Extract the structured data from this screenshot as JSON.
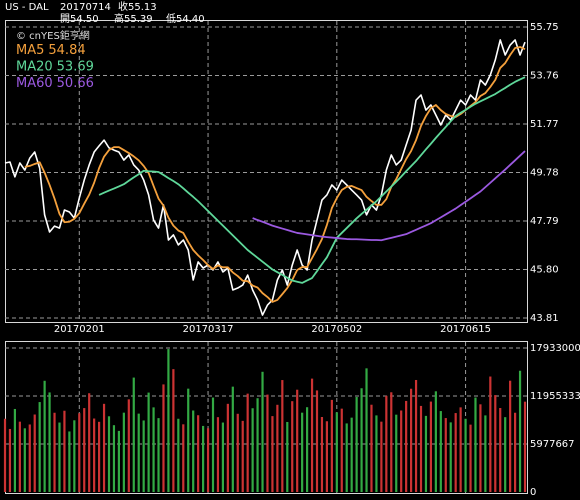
{
  "header": {
    "symbol": "US - DAL",
    "date": "20170714",
    "close": "收55.13",
    "open": "開54.50",
    "high": "高55.39",
    "low": "低54.40"
  },
  "chart_data": [
    {
      "type": "line",
      "watermark": "© cnYES鉅亨網",
      "categories": [
        null,
        null,
        null,
        null,
        null,
        null,
        null,
        null,
        null,
        null,
        null,
        null,
        null,
        null,
        null,
        "20170201",
        null,
        null,
        null,
        null,
        null,
        null,
        null,
        null,
        null,
        null,
        null,
        null,
        null,
        null,
        null,
        null,
        null,
        null,
        null,
        null,
        null,
        null,
        null,
        null,
        null,
        "20170317",
        null,
        null,
        null,
        null,
        null,
        null,
        null,
        null,
        null,
        null,
        null,
        null,
        null,
        null,
        null,
        null,
        null,
        null,
        null,
        null,
        null,
        null,
        null,
        null,
        null,
        "20170502",
        null,
        null,
        null,
        null,
        null,
        null,
        null,
        null,
        null,
        null,
        null,
        null,
        null,
        null,
        null,
        null,
        null,
        null,
        null,
        null,
        null,
        null,
        null,
        null,
        null,
        "20170615",
        null,
        null,
        null,
        null,
        null,
        null,
        null,
        null,
        null,
        null,
        null,
        null
      ],
      "series": [
        {
          "color": "#ffffff",
          "values": [
            50.17,
            50.21,
            49.6,
            50.17,
            49.88,
            50.37,
            50.62,
            49.96,
            48.04,
            47.34,
            47.58,
            47.5,
            48.24,
            48.16,
            47.91,
            48.73,
            49.47,
            50.09,
            50.62,
            50.87,
            51.11,
            50.79,
            50.7,
            50.62,
            50.29,
            50.5,
            50.09,
            49.88,
            49.47,
            48.86,
            47.83,
            47.5,
            48.45,
            47.01,
            47.22,
            46.81,
            47.01,
            46.6,
            45.37,
            46.11,
            45.86,
            45.98,
            45.78,
            46.11,
            45.7,
            45.86,
            44.96,
            45.04,
            45.16,
            45.57,
            44.96,
            44.55,
            43.93,
            44.34,
            44.55,
            45.37,
            45.78,
            45.16,
            45.98,
            46.6,
            45.98,
            45.78,
            47.01,
            47.83,
            48.65,
            48.86,
            49.27,
            49.06,
            49.47,
            49.27,
            49.06,
            48.86,
            48.65,
            48.04,
            48.45,
            48.24,
            48.86,
            49.88,
            50.5,
            50.09,
            50.29,
            50.91,
            51.52,
            52.75,
            52.96,
            52.34,
            52.55,
            52.14,
            51.73,
            52.14,
            51.93,
            52.34,
            52.75,
            52.55,
            52.96,
            52.75,
            53.58,
            53.37,
            53.78,
            54.4,
            55.22,
            54.6,
            55.01,
            55.22,
            54.6,
            55.13
          ]
        },
        {
          "name": "MA5",
          "color": "#f4a03c",
          "values": [
            null,
            null,
            null,
            null,
            50.01,
            50.05,
            50.13,
            50.2,
            49.77,
            49.27,
            48.71,
            48.08,
            47.74,
            47.76,
            47.88,
            48.11,
            48.5,
            48.87,
            49.36,
            49.96,
            50.43,
            50.7,
            50.82,
            50.82,
            50.7,
            50.58,
            50.44,
            50.28,
            50.05,
            49.76,
            49.23,
            48.71,
            48.42,
            47.93,
            47.6,
            47.4,
            47.3,
            46.93,
            46.6,
            46.38,
            46.19,
            45.98,
            45.82,
            45.97,
            45.89,
            45.89,
            45.68,
            45.53,
            45.34,
            45.32,
            45.14,
            45.06,
            44.83,
            44.67,
            44.47,
            44.55,
            44.79,
            45.04,
            45.37,
            45.78,
            45.9,
            45.9,
            46.27,
            46.64,
            47.05,
            47.63,
            48.32,
            48.73,
            49.06,
            49.19,
            49.23,
            49.14,
            49.06,
            48.78,
            48.61,
            48.45,
            48.45,
            48.69,
            49.19,
            49.51,
            49.92,
            50.33,
            50.66,
            51.11,
            51.69,
            52.1,
            52.42,
            52.55,
            52.34,
            52.18,
            52.1,
            52.06,
            52.18,
            52.34,
            52.51,
            52.67,
            52.92,
            53.04,
            53.29,
            53.58,
            54.07,
            54.27,
            54.6,
            54.89,
            54.93,
            54.84
          ]
        },
        {
          "name": "MA20",
          "color": "#5fd89a",
          "values": [
            null,
            null,
            null,
            null,
            null,
            null,
            null,
            null,
            null,
            null,
            null,
            null,
            null,
            null,
            null,
            null,
            null,
            null,
            null,
            48.86,
            48.95,
            49.04,
            49.12,
            49.21,
            49.3,
            49.44,
            49.58,
            49.71,
            49.85,
            49.83,
            49.82,
            49.8,
            49.68,
            49.55,
            49.43,
            49.3,
            49.13,
            48.95,
            48.78,
            48.6,
            48.4,
            48.2,
            48.0,
            47.8,
            47.6,
            47.4,
            47.2,
            47.0,
            46.8,
            46.6,
            46.44,
            46.28,
            46.12,
            45.96,
            45.8,
            45.69,
            45.58,
            45.46,
            45.35,
            45.3,
            45.25,
            45.35,
            45.45,
            45.73,
            46.02,
            46.3,
            46.7,
            47.1,
            47.3,
            47.5,
            47.7,
            47.9,
            48.08,
            48.25,
            48.43,
            48.6,
            48.8,
            49.0,
            49.2,
            49.4,
            49.61,
            49.83,
            50.04,
            50.25,
            50.49,
            50.73,
            50.96,
            51.2,
            51.43,
            51.65,
            51.88,
            52.1,
            52.23,
            52.35,
            52.48,
            52.6,
            52.7,
            52.8,
            52.9,
            53.0,
            53.13,
            53.25,
            53.38,
            53.5,
            53.6,
            53.69
          ]
        },
        {
          "name": "MA60",
          "color": "#9b59e0",
          "values": [
            null,
            null,
            null,
            null,
            null,
            null,
            null,
            null,
            null,
            null,
            null,
            null,
            null,
            null,
            null,
            null,
            null,
            null,
            null,
            null,
            null,
            null,
            null,
            null,
            null,
            null,
            null,
            null,
            null,
            null,
            null,
            null,
            null,
            null,
            null,
            null,
            null,
            null,
            null,
            null,
            null,
            null,
            null,
            null,
            null,
            null,
            null,
            null,
            null,
            null,
            47.91,
            47.83,
            47.76,
            47.68,
            47.6,
            47.54,
            47.48,
            47.42,
            47.36,
            47.3,
            47.27,
            47.24,
            47.21,
            47.18,
            47.15,
            47.13,
            47.11,
            47.09,
            47.07,
            47.05,
            47.04,
            47.04,
            47.03,
            47.02,
            47.01,
            47.01,
            47.0,
            47.05,
            47.1,
            47.15,
            47.2,
            47.25,
            47.34,
            47.43,
            47.52,
            47.61,
            47.7,
            47.82,
            47.94,
            48.06,
            48.18,
            48.3,
            48.44,
            48.58,
            48.72,
            48.86,
            49.0,
            49.18,
            49.36,
            49.54,
            49.72,
            49.9,
            50.09,
            50.28,
            50.47,
            50.66
          ]
        }
      ],
      "ylim": [
        43.81,
        55.75
      ],
      "yticks": [
        55.75,
        53.76,
        51.77,
        49.78,
        47.79,
        {
          "value": 45.8,
          "label": "45.80"
        },
        43.81
      ],
      "grid": true
    },
    {
      "type": "bar",
      "up_color": "#cc3333",
      "down_color": "#33aa44",
      "values": [
        9120000,
        7850000,
        10340000,
        8760000,
        7930000,
        8410000,
        9650000,
        11200000,
        13850000,
        12400000,
        9870000,
        8650000,
        10120000,
        7540000,
        8930000,
        9810000,
        10450000,
        12300000,
        9150000,
        8740000,
        10980000,
        9430000,
        8320000,
        7610000,
        9880000,
        11540000,
        14250000,
        9760000,
        8910000,
        12380000,
        10540000,
        9200000,
        13400000,
        17800000,
        15300000,
        9120000,
        8430000,
        12870000,
        10150000,
        9560000,
        8230000,
        7940000,
        11760000,
        9320000,
        8650000,
        10980000,
        13120000,
        9740000,
        8860000,
        12250000,
        10430000,
        11680000,
        14970000,
        12130000,
        9450000,
        10860000,
        13940000,
        8720000,
        11310000,
        12740000,
        9880000,
        10560000,
        14120000,
        12650000,
        9340000,
        8810000,
        11470000,
        9920000,
        10380000,
        8540000,
        9260000,
        11830000,
        12920000,
        15400000,
        10870000,
        9540000,
        8760000,
        11980000,
        12420000,
        9630000,
        10150000,
        11340000,
        12860000,
        13950000,
        10720000,
        9480000,
        11260000,
        12540000,
        10080000,
        9210000,
        8670000,
        9830000,
        10540000,
        9120000,
        8390000,
        11760000,
        10920000,
        9540000,
        14380000,
        12070000,
        10460000,
        9320000,
        13860000,
        9870000,
        15100000,
        11250000
      ],
      "ylim": [
        0,
        17933000
      ],
      "yticks": [
        0,
        5977667,
        11955333,
        17933000
      ],
      "grid": true
    }
  ]
}
